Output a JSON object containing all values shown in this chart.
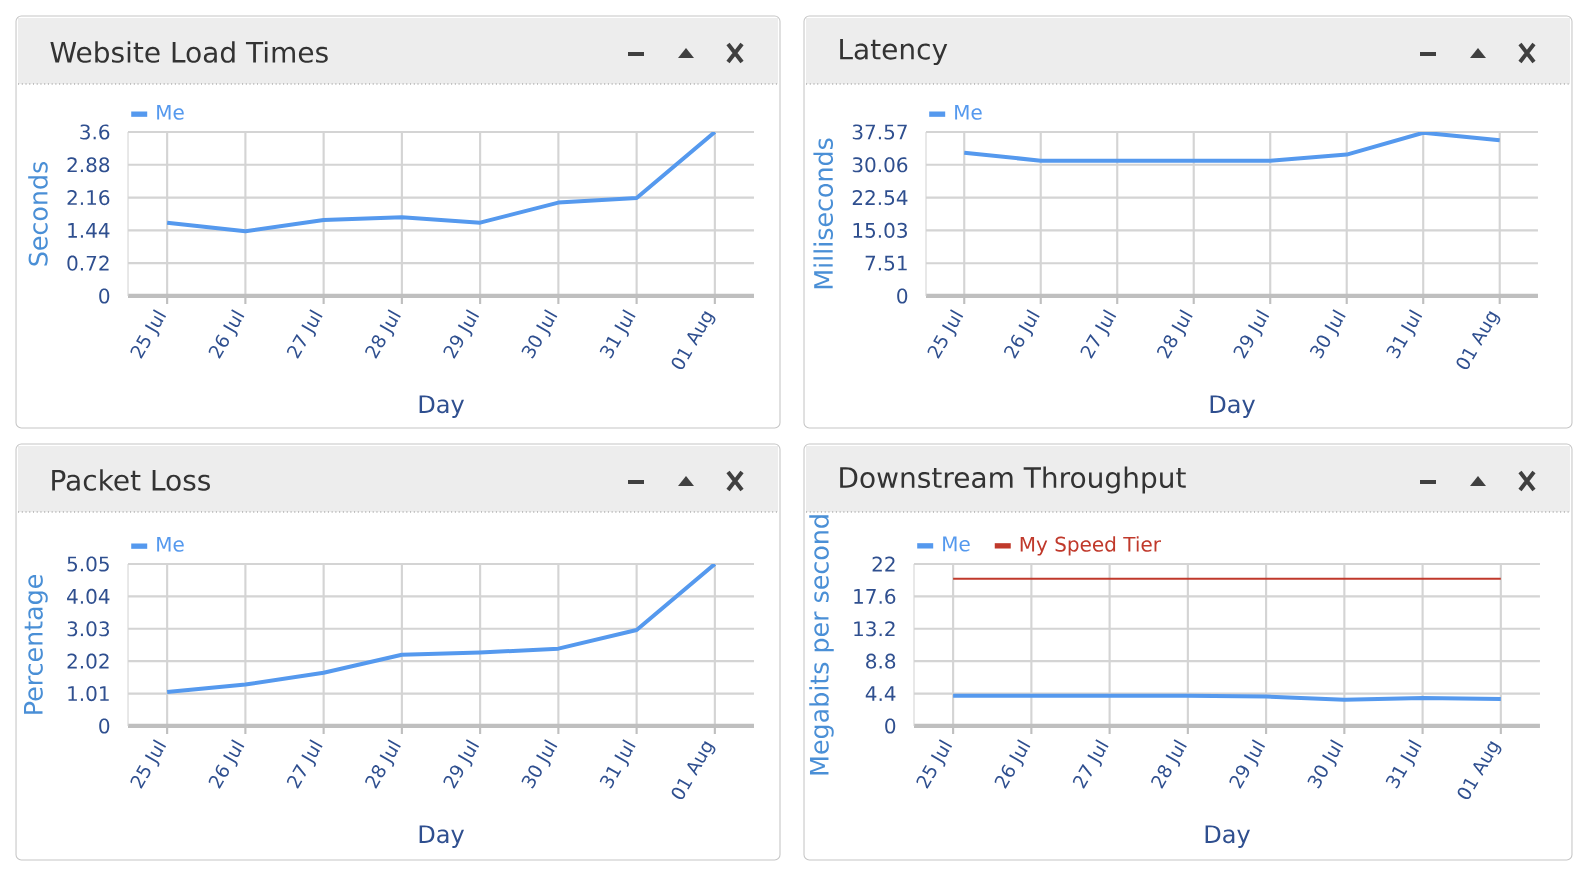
{
  "chart_data": [
    {
      "type": "line",
      "title": "Website Load Times",
      "xlabel": "Day",
      "ylabel": "Seconds",
      "categories": [
        "25 Jul",
        "26 Jul",
        "27 Jul",
        "28 Jul",
        "29 Jul",
        "30 Jul",
        "31 Jul",
        "01 Aug"
      ],
      "series": [
        {
          "name": "Me",
          "color": "#5599ee",
          "values": [
            1.61,
            1.42,
            1.67,
            1.73,
            1.61,
            2.05,
            2.15,
            3.6
          ]
        }
      ],
      "ylim": [
        0,
        3.6
      ],
      "yticks": [
        0,
        0.72,
        1.44,
        2.16,
        2.88,
        3.6
      ],
      "grid": true,
      "legend": "top left"
    },
    {
      "type": "line",
      "title": "Latency",
      "xlabel": "Day",
      "ylabel": "Milliseconds",
      "categories": [
        "25 Jul",
        "26 Jul",
        "27 Jul",
        "28 Jul",
        "29 Jul",
        "30 Jul",
        "31 Jul",
        "01 Aug"
      ],
      "series": [
        {
          "name": "Me",
          "color": "#5599ee",
          "values": [
            32.8,
            31.0,
            31.0,
            31.0,
            31.0,
            32.4,
            37.4,
            35.7
          ]
        }
      ],
      "ylim": [
        0,
        37.57
      ],
      "yticks": [
        0,
        7.51,
        15.03,
        22.54,
        30.06,
        37.57
      ],
      "grid": true,
      "legend": "top left"
    },
    {
      "type": "line",
      "title": "Packet Loss",
      "xlabel": "Day",
      "ylabel": "Percentage",
      "categories": [
        "25 Jul",
        "26 Jul",
        "27 Jul",
        "28 Jul",
        "29 Jul",
        "30 Jul",
        "31 Jul",
        "01 Aug"
      ],
      "series": [
        {
          "name": "Me",
          "color": "#5599ee",
          "values": [
            1.06,
            1.29,
            1.66,
            2.22,
            2.29,
            2.41,
            2.99,
            5.05
          ]
        }
      ],
      "ylim": [
        0,
        5.05
      ],
      "yticks": [
        0,
        1.01,
        2.02,
        3.03,
        4.04,
        5.05
      ],
      "grid": true,
      "legend": "top left"
    },
    {
      "type": "line",
      "title": "Downstream Throughput",
      "xlabel": "Day",
      "ylabel": "Megabits per second",
      "categories": [
        "25 Jul",
        "26 Jul",
        "27 Jul",
        "28 Jul",
        "29 Jul",
        "30 Jul",
        "31 Jul",
        "01 Aug"
      ],
      "series": [
        {
          "name": "Me",
          "color": "#5599ee",
          "values": [
            4.1,
            4.1,
            4.1,
            4.1,
            4.0,
            3.56,
            3.8,
            3.65
          ]
        },
        {
          "name": "My Speed Tier",
          "color": "#c0392b",
          "values": [
            20,
            20,
            20,
            20,
            20,
            20,
            20,
            20
          ]
        }
      ],
      "ylim": [
        0,
        22
      ],
      "yticks": [
        0,
        4.4,
        8.8,
        13.2,
        17.6,
        22
      ],
      "grid": true,
      "legend": "top left"
    }
  ]
}
